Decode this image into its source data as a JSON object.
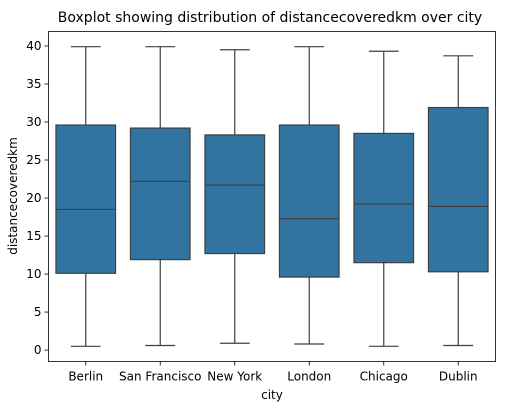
{
  "chart_data": {
    "type": "boxplot",
    "title": "Boxplot showing distribution of distancecoveredkm over city",
    "xlabel": "city",
    "ylabel": "distancecoveredkm",
    "ylim": [
      -1.5,
      41.9
    ],
    "yticks": [
      0,
      5,
      10,
      15,
      20,
      25,
      30,
      35,
      40
    ],
    "grid": false,
    "legend": "none",
    "box_color": "#3274a1",
    "line_color": "#3f3f3f",
    "categories": [
      "Berlin",
      "San Francisco",
      "New York",
      "London",
      "Chicago",
      "Dublin"
    ],
    "boxes": [
      {
        "category": "Berlin",
        "whisker_low": 0.5,
        "q1": 10.1,
        "median": 18.5,
        "q3": 29.6,
        "whisker_high": 39.9
      },
      {
        "category": "San Francisco",
        "whisker_low": 0.6,
        "q1": 11.9,
        "median": 22.2,
        "q3": 29.2,
        "whisker_high": 39.9
      },
      {
        "category": "New York",
        "whisker_low": 0.9,
        "q1": 12.7,
        "median": 21.7,
        "q3": 28.3,
        "whisker_high": 39.5
      },
      {
        "category": "London",
        "whisker_low": 0.8,
        "q1": 9.6,
        "median": 17.3,
        "q3": 29.6,
        "whisker_high": 39.9
      },
      {
        "category": "Chicago",
        "whisker_low": 0.5,
        "q1": 11.5,
        "median": 19.2,
        "q3": 28.5,
        "whisker_high": 39.3
      },
      {
        "category": "Dublin",
        "whisker_low": 0.6,
        "q1": 10.3,
        "median": 18.9,
        "q3": 31.9,
        "whisker_high": 38.7
      }
    ]
  }
}
